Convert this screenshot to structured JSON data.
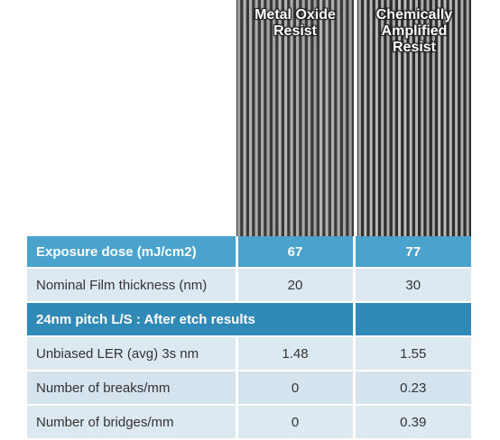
{
  "images": {
    "left_title": "Metal Oxide\nResist",
    "right_title": "Chemically\nAmplified\nResist"
  },
  "table": {
    "header": {
      "label": "Exposure dose (mJ/cm2)",
      "metal_oxide": "67",
      "chemically_amplified": "77"
    },
    "film_thickness": {
      "label": "Nominal Film thickness (nm)",
      "metal_oxide": "20",
      "chemically_amplified": "30"
    },
    "section_header": {
      "label": "24nm pitch L/S : After etch results"
    },
    "rows": [
      {
        "label": "Unbiased LER (avg) 3s nm",
        "metal_oxide": "1.48",
        "chemically_amplified": "1.55"
      },
      {
        "label": "Number of breaks/mm",
        "metal_oxide": "0",
        "chemically_amplified": "0.23"
      },
      {
        "label": "Number of bridges/mm",
        "metal_oxide": "0",
        "chemically_amplified": "0.39"
      }
    ]
  },
  "colors": {
    "header_blue": "#4aa3cc",
    "section_blue": "#2f8ab8",
    "row_light": "#dde9f1"
  }
}
